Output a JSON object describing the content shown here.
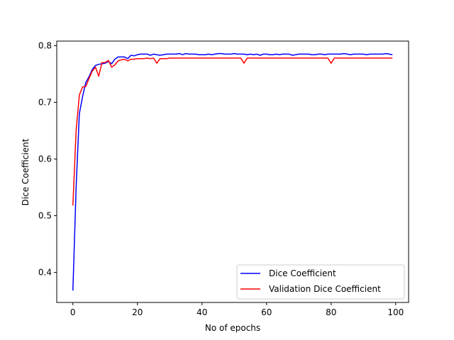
{
  "chart_data": {
    "type": "line",
    "title": "",
    "xlabel": "No of epochs",
    "ylabel": "Dice Coefficient",
    "xlim": [
      -5,
      104
    ],
    "ylim": [
      0.347,
      0.808
    ],
    "xticks": [
      0,
      20,
      40,
      60,
      80,
      100
    ],
    "yticks": [
      0.4,
      0.5,
      0.6,
      0.7,
      0.8
    ],
    "xtick_labels": [
      "0",
      "20",
      "40",
      "60",
      "80",
      "100"
    ],
    "ytick_labels": [
      "0.4",
      "0.5",
      "0.6",
      "0.7",
      "0.8"
    ],
    "grid": false,
    "legend_position": "bottom-right",
    "series": [
      {
        "name": "Dice Coefficient",
        "color": "#0000ff",
        "x": [
          0,
          1,
          2,
          3,
          4,
          5,
          6,
          7,
          8,
          9,
          10,
          11,
          12,
          13,
          14,
          15,
          16,
          17,
          18,
          19,
          20,
          21,
          22,
          23,
          24,
          25,
          26,
          27,
          28,
          29,
          30,
          31,
          32,
          33,
          34,
          35,
          36,
          37,
          38,
          39,
          40,
          41,
          42,
          43,
          44,
          45,
          46,
          47,
          48,
          49,
          50,
          51,
          52,
          53,
          54,
          55,
          56,
          57,
          58,
          59,
          60,
          61,
          62,
          63,
          64,
          65,
          66,
          67,
          68,
          69,
          70,
          71,
          72,
          73,
          74,
          75,
          76,
          77,
          78,
          79,
          80,
          81,
          82,
          83,
          84,
          85,
          86,
          87,
          88,
          89,
          90,
          91,
          92,
          93,
          94,
          95,
          96,
          97,
          98,
          99
        ],
        "y": [
          0.368,
          0.55,
          0.68,
          0.71,
          0.735,
          0.745,
          0.758,
          0.765,
          0.767,
          0.768,
          0.769,
          0.772,
          0.768,
          0.776,
          0.78,
          0.78,
          0.78,
          0.777,
          0.783,
          0.782,
          0.784,
          0.785,
          0.785,
          0.785,
          0.783,
          0.785,
          0.784,
          0.783,
          0.784,
          0.785,
          0.785,
          0.785,
          0.785,
          0.786,
          0.784,
          0.786,
          0.785,
          0.785,
          0.785,
          0.784,
          0.784,
          0.784,
          0.785,
          0.784,
          0.785,
          0.786,
          0.786,
          0.785,
          0.785,
          0.785,
          0.786,
          0.785,
          0.785,
          0.785,
          0.784,
          0.785,
          0.784,
          0.785,
          0.783,
          0.785,
          0.785,
          0.784,
          0.784,
          0.785,
          0.784,
          0.785,
          0.785,
          0.785,
          0.783,
          0.784,
          0.785,
          0.785,
          0.785,
          0.785,
          0.784,
          0.784,
          0.785,
          0.785,
          0.784,
          0.785,
          0.785,
          0.785,
          0.785,
          0.785,
          0.786,
          0.785,
          0.784,
          0.785,
          0.785,
          0.785,
          0.785,
          0.784,
          0.785,
          0.785,
          0.785,
          0.785,
          0.785,
          0.786,
          0.785,
          0.784
        ]
      },
      {
        "name": "Validation Dice Coefficient",
        "color": "#ff0000",
        "x": [
          0,
          1,
          2,
          3,
          4,
          5,
          6,
          7,
          8,
          9,
          10,
          11,
          12,
          13,
          14,
          15,
          16,
          17,
          18,
          19,
          20,
          21,
          22,
          23,
          24,
          25,
          26,
          27,
          28,
          29,
          30,
          31,
          32,
          33,
          34,
          35,
          36,
          37,
          38,
          39,
          40,
          41,
          42,
          43,
          44,
          45,
          46,
          47,
          48,
          49,
          50,
          51,
          52,
          53,
          54,
          55,
          56,
          57,
          58,
          59,
          60,
          61,
          62,
          63,
          64,
          65,
          66,
          67,
          68,
          69,
          70,
          71,
          72,
          73,
          74,
          75,
          76,
          77,
          78,
          79,
          80,
          81,
          82,
          83,
          84,
          85,
          86,
          87,
          88,
          89,
          90,
          91,
          92,
          93,
          94,
          95,
          96,
          97,
          98,
          99
        ],
        "y": [
          0.518,
          0.65,
          0.713,
          0.727,
          0.728,
          0.742,
          0.755,
          0.762,
          0.746,
          0.77,
          0.77,
          0.774,
          0.762,
          0.766,
          0.773,
          0.775,
          0.776,
          0.773,
          0.776,
          0.776,
          0.777,
          0.777,
          0.777,
          0.778,
          0.777,
          0.778,
          0.769,
          0.777,
          0.777,
          0.777,
          0.778,
          0.778,
          0.778,
          0.778,
          0.778,
          0.778,
          0.778,
          0.778,
          0.778,
          0.778,
          0.778,
          0.778,
          0.778,
          0.778,
          0.778,
          0.778,
          0.778,
          0.778,
          0.778,
          0.778,
          0.778,
          0.778,
          0.778,
          0.769,
          0.778,
          0.778,
          0.778,
          0.778,
          0.778,
          0.778,
          0.778,
          0.778,
          0.778,
          0.778,
          0.778,
          0.778,
          0.778,
          0.778,
          0.778,
          0.778,
          0.778,
          0.778,
          0.778,
          0.778,
          0.778,
          0.778,
          0.778,
          0.778,
          0.778,
          0.778,
          0.769,
          0.778,
          0.778,
          0.778,
          0.778,
          0.778,
          0.778,
          0.778,
          0.778,
          0.778,
          0.778,
          0.778,
          0.778,
          0.778,
          0.778,
          0.778,
          0.778,
          0.778,
          0.778,
          0.778
        ]
      }
    ]
  }
}
